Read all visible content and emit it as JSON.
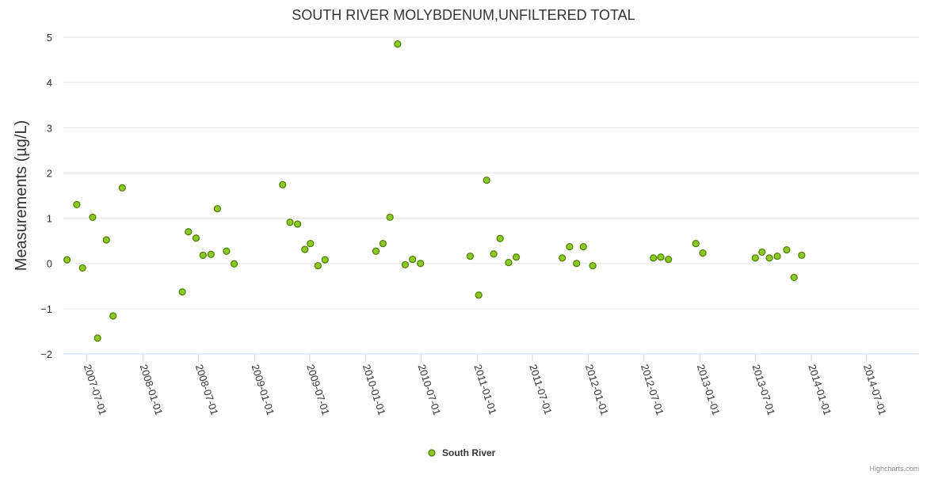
{
  "chart_data": {
    "type": "scatter",
    "title": "SOUTH RIVER MOLYBDENUM,UNFILTERED TOTAL",
    "xlabel": "",
    "ylabel": "Measurements (µg/L)",
    "ylim": [
      -2,
      5
    ],
    "yticks": [
      "−2",
      "−1",
      "0",
      "1",
      "2",
      "3",
      "4",
      "5"
    ],
    "xlim": [
      "2007-04-15",
      "2014-12-20"
    ],
    "xticks": [
      "2007-07-01",
      "2008-01-01",
      "2008-07-01",
      "2009-01-01",
      "2009-07-01",
      "2010-01-01",
      "2010-07-01",
      "2011-01-01",
      "2011-07-01",
      "2012-01-01",
      "2012-07-01",
      "2013-01-01",
      "2013-07-01",
      "2014-01-01",
      "2014-07-01"
    ],
    "legend": "bottom-center",
    "series": [
      {
        "name": "South River",
        "color": "#8ac926",
        "marker_stroke": "#4d7a00",
        "points": [
          {
            "x": "2007-04-27",
            "y": 0.08
          },
          {
            "x": "2007-05-29",
            "y": 1.3
          },
          {
            "x": "2007-06-17",
            "y": -0.1
          },
          {
            "x": "2007-07-20",
            "y": 1.02
          },
          {
            "x": "2007-08-05",
            "y": -1.65
          },
          {
            "x": "2007-09-03",
            "y": 0.52
          },
          {
            "x": "2007-09-25",
            "y": -1.16
          },
          {
            "x": "2007-10-25",
            "y": 1.67
          },
          {
            "x": "2008-05-09",
            "y": -0.63
          },
          {
            "x": "2008-05-29",
            "y": 0.7
          },
          {
            "x": "2008-06-23",
            "y": 0.56
          },
          {
            "x": "2008-07-16",
            "y": 0.18
          },
          {
            "x": "2008-08-11",
            "y": 0.2
          },
          {
            "x": "2008-09-01",
            "y": 1.21
          },
          {
            "x": "2008-10-01",
            "y": 0.27
          },
          {
            "x": "2008-10-26",
            "y": -0.01
          },
          {
            "x": "2009-04-03",
            "y": 1.74
          },
          {
            "x": "2009-04-27",
            "y": 0.91
          },
          {
            "x": "2009-05-22",
            "y": 0.87
          },
          {
            "x": "2009-06-15",
            "y": 0.31
          },
          {
            "x": "2009-07-03",
            "y": 0.44
          },
          {
            "x": "2009-07-28",
            "y": -0.05
          },
          {
            "x": "2009-08-20",
            "y": 0.08
          },
          {
            "x": "2010-02-03",
            "y": 0.27
          },
          {
            "x": "2010-02-26",
            "y": 0.44
          },
          {
            "x": "2010-03-21",
            "y": 1.02
          },
          {
            "x": "2010-04-15",
            "y": 4.85
          },
          {
            "x": "2010-05-10",
            "y": -0.03
          },
          {
            "x": "2010-06-03",
            "y": 0.09
          },
          {
            "x": "2010-06-29",
            "y": 0.0
          },
          {
            "x": "2010-12-09",
            "y": 0.16
          },
          {
            "x": "2011-01-06",
            "y": -0.7
          },
          {
            "x": "2011-02-01",
            "y": 1.84
          },
          {
            "x": "2011-02-24",
            "y": 0.21
          },
          {
            "x": "2011-03-17",
            "y": 0.55
          },
          {
            "x": "2011-04-14",
            "y": 0.02
          },
          {
            "x": "2011-05-09",
            "y": 0.14
          },
          {
            "x": "2011-10-07",
            "y": 0.12
          },
          {
            "x": "2011-10-31",
            "y": 0.37
          },
          {
            "x": "2011-11-23",
            "y": 0.0
          },
          {
            "x": "2011-12-15",
            "y": 0.37
          },
          {
            "x": "2012-01-15",
            "y": -0.05
          },
          {
            "x": "2012-08-01",
            "y": 0.12
          },
          {
            "x": "2012-08-25",
            "y": 0.14
          },
          {
            "x": "2012-09-19",
            "y": 0.09
          },
          {
            "x": "2012-12-18",
            "y": 0.44
          },
          {
            "x": "2013-01-10",
            "y": 0.23
          },
          {
            "x": "2013-07-01",
            "y": 0.12
          },
          {
            "x": "2013-07-23",
            "y": 0.25
          },
          {
            "x": "2013-08-16",
            "y": 0.12
          },
          {
            "x": "2013-09-11",
            "y": 0.16
          },
          {
            "x": "2013-10-12",
            "y": 0.3
          },
          {
            "x": "2013-11-05",
            "y": -0.31
          },
          {
            "x": "2013-11-30",
            "y": 0.18
          }
        ]
      }
    ],
    "credits": "Highcharts.com"
  }
}
